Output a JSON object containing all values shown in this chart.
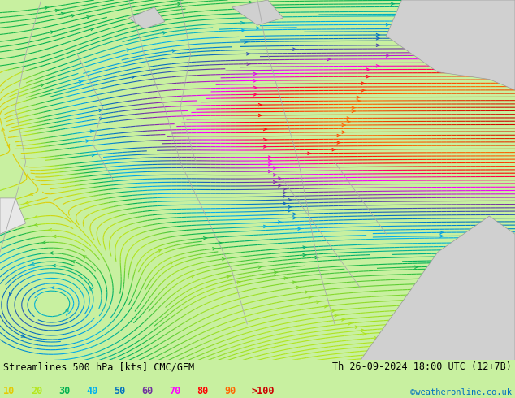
{
  "title_left": "Streamlines 500 hPa [kts] CMC/GEM",
  "title_right": "Th 26-09-2024 18:00 UTC (12+7B)",
  "credit": "©weatheronline.co.uk",
  "legend_values": [
    "10",
    "20",
    "30",
    "40",
    "50",
    "60",
    "70",
    "80",
    "90",
    ">100"
  ],
  "legend_colors": [
    "#e6c800",
    "#b5e61d",
    "#00b050",
    "#00b0f0",
    "#0070c0",
    "#7030a0",
    "#ff00ff",
    "#ff0000",
    "#ff6600",
    "#cc0000"
  ],
  "bg_color": "#c8f0a0",
  "gray_land_color": "#d0d0d0",
  "bottom_bg": "#ffffff",
  "text_color": "#000000",
  "title_fontsize": 9,
  "legend_fontsize": 9,
  "figsize": [
    6.34,
    4.9
  ],
  "dpi": 100
}
